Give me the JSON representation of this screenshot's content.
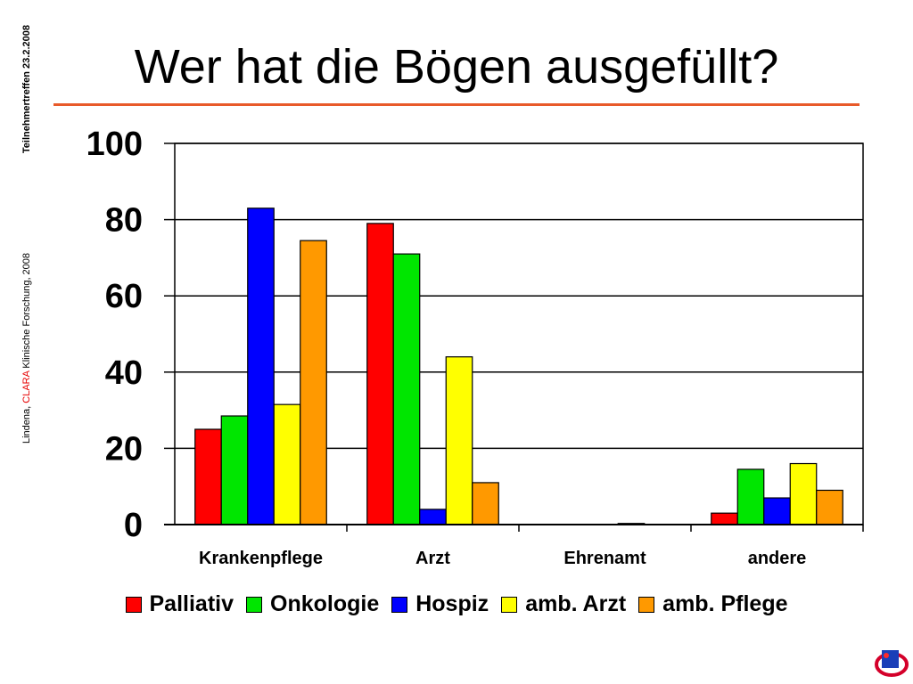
{
  "page": {
    "title": "Wer hat die Bögen ausgefüllt?",
    "side_author": "Lindena, ",
    "side_brand": "CLARA",
    "side_org": " Klinische Forschung, 2008",
    "side_event": "Teilnehmertreffen 23.2.2008"
  },
  "colors": {
    "title_rule": "#e85a2a",
    "Palliativ": "#ff0000",
    "Onkologie": "#00e600",
    "Hospiz": "#0000ff",
    "amb. Arzt": "#ffff00",
    "amb. Pflege": "#ff9900"
  },
  "chart_data": {
    "type": "bar",
    "title": "Wer hat die Bögen ausgefüllt?",
    "xlabel": "",
    "ylabel": "",
    "ylim": [
      0,
      100
    ],
    "yticks": [
      "0",
      "20",
      "40",
      "60",
      "80",
      "100"
    ],
    "grid": true,
    "legend_position": "bottom",
    "categories": [
      "Krankenpflege",
      "Arzt",
      "Ehrenamt",
      "andere"
    ],
    "series": [
      {
        "name": "Palliativ",
        "values": [
          25,
          79,
          0,
          3
        ]
      },
      {
        "name": "Onkologie",
        "values": [
          28.5,
          71,
          0,
          14.5
        ]
      },
      {
        "name": "Hospiz",
        "values": [
          83,
          4,
          0,
          7
        ]
      },
      {
        "name": "amb. Arzt",
        "values": [
          31.5,
          44,
          0.3,
          16
        ]
      },
      {
        "name": "amb. Pflege",
        "values": [
          74.5,
          11,
          0,
          9
        ]
      }
    ]
  }
}
